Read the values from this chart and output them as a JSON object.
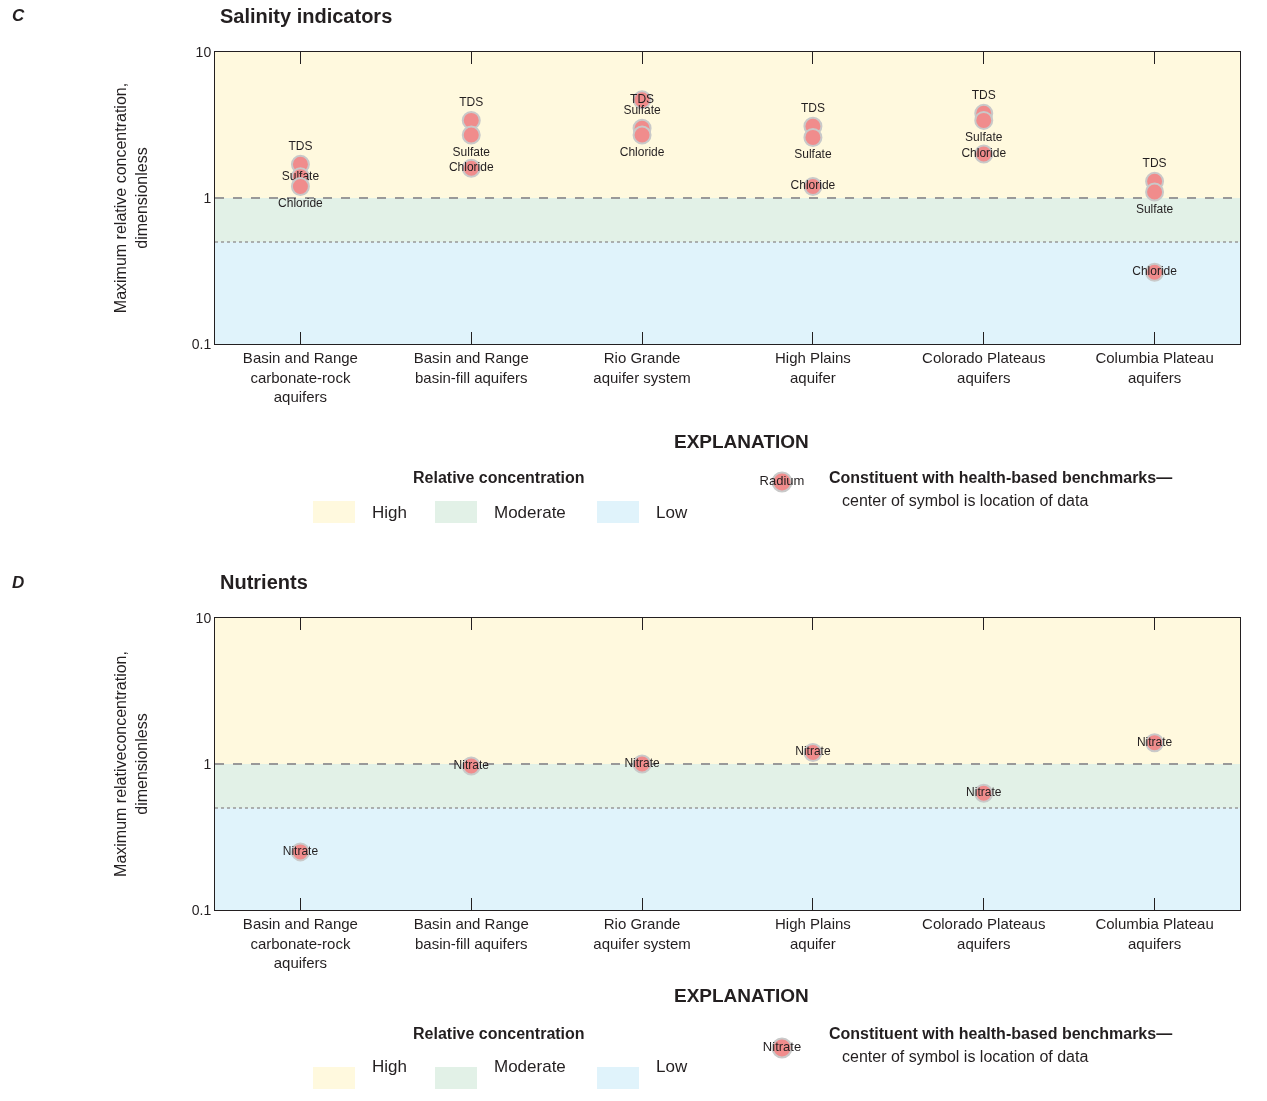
{
  "chart_data": [
    {
      "type": "scatter",
      "title": "Salinity indicators",
      "ylabel": "Maximum relative concentration,\ndimensionless",
      "legend_title": "Relative concentration",
      "categories": [
        "Basin and Range\ncarbonate-rock\naquifers",
        "Basin and Range\nbasin-fill aquifers",
        "Rio Grande\naquifer system",
        "High Plains\naquifer",
        "Colorado Plateaus\naquifers",
        "Columbia Plateau\naquifers"
      ],
      "series": [
        {
          "name": "TDS",
          "color": "#f08c8c",
          "values": [
            1.7,
            3.4,
            4.7,
            3.1,
            3.8,
            1.3
          ]
        },
        {
          "name": "Sulfate",
          "color": "#f08c8c",
          "values": [
            1.4,
            2.7,
            3.0,
            2.6,
            3.4,
            1.1
          ]
        },
        {
          "name": "Chloride",
          "color": "#f08c8c",
          "values": [
            1.2,
            1.6,
            2.7,
            1.2,
            2.0,
            0.31
          ]
        }
      ],
      "log": "y",
      "ylim": [
        0.1,
        10
      ],
      "yticks": [
        0.1,
        1,
        10
      ],
      "grid": false,
      "legend": "bottom",
      "marker": "circle",
      "bands": [
        {
          "axis": "y",
          "from": 1,
          "to": 10,
          "label": "High",
          "color": "#fff9de"
        },
        {
          "axis": "y",
          "from": 0.5,
          "to": 1,
          "label": "Moderate",
          "color": "#e2f1e7"
        },
        {
          "axis": "y",
          "from": 0.1,
          "to": 0.5,
          "label": "Low",
          "color": "#e0f3fb"
        }
      ],
      "ref_lines": [
        {
          "axis": "y",
          "value": 1,
          "color": "#999999",
          "line_style": "dashed"
        },
        {
          "axis": "y",
          "value": 0.5,
          "color": "#999999",
          "line_style": "dotted"
        }
      ],
      "annotations": [
        "C",
        "EXPLANATION",
        "Radium",
        "Constituent with health-based benchmarks—",
        "center of symbol is location of data"
      ]
    },
    {
      "type": "scatter",
      "title": "Nutrients",
      "ylabel": "Maximum relativeconcentration,\ndimensionless",
      "legend_title": "Relative concentration",
      "categories": [
        "Basin and Range\ncarbonate-rock\naquifers",
        "Basin and Range\nbasin-fill aquifers",
        "Rio Grande\naquifer system",
        "High Plains\naquifer",
        "Colorado Plateaus\naquifers",
        "Columbia Plateau\naquifers"
      ],
      "series": [
        {
          "name": "Nitrate",
          "color": "#f08c8c",
          "values": [
            0.25,
            0.97,
            1.0,
            1.2,
            0.63,
            1.4
          ]
        }
      ],
      "log": "y",
      "ylim": [
        0.1,
        10
      ],
      "yticks": [
        0.1,
        1,
        10
      ],
      "grid": false,
      "legend": "bottom",
      "marker": "circle",
      "bands": [
        {
          "axis": "y",
          "from": 1,
          "to": 10,
          "label": "High",
          "color": "#fff9de"
        },
        {
          "axis": "y",
          "from": 0.5,
          "to": 1,
          "label": "Moderate",
          "color": "#e2f1e7"
        },
        {
          "axis": "y",
          "from": 0.1,
          "to": 0.5,
          "label": "Low",
          "color": "#e0f3fb"
        }
      ],
      "ref_lines": [
        {
          "axis": "y",
          "value": 1,
          "color": "#999999",
          "line_style": "dashed"
        },
        {
          "axis": "y",
          "value": 0.5,
          "color": "#999999",
          "line_style": "dotted"
        }
      ],
      "annotations": [
        "D",
        "EXPLANATION",
        "Nitrate",
        "Constituent with health-based benchmarks—",
        "center of symbol is location of data"
      ]
    }
  ]
}
